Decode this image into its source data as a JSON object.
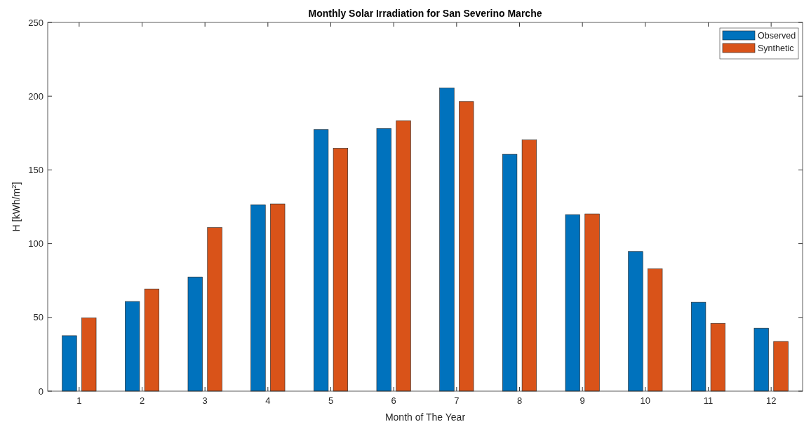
{
  "chart_data": {
    "type": "bar",
    "title": "Monthly Solar Irradiation for San Severino Marche",
    "xlabel": "Month of The Year",
    "ylabel": "H [kWh/m$^{2}$]",
    "categories": [
      "1",
      "2",
      "3",
      "4",
      "5",
      "6",
      "7",
      "8",
      "9",
      "10",
      "11",
      "12"
    ],
    "series": [
      {
        "name": "Observed",
        "color": "#0072bd",
        "values": [
          37.6,
          60.8,
          77.4,
          126.4,
          177.4,
          178.1,
          205.6,
          160.6,
          119.7,
          94.7,
          60.3,
          42.7
        ]
      },
      {
        "name": "Synthetic",
        "color": "#d95319",
        "values": [
          49.7,
          69.3,
          110.9,
          126.9,
          164.7,
          183.4,
          196.4,
          170.3,
          120.2,
          83.0,
          46.0,
          33.7
        ]
      }
    ],
    "ylim": [
      0,
      250
    ],
    "yticks": [
      0,
      50,
      100,
      150,
      200,
      250
    ],
    "grid": false,
    "legend": "top right"
  }
}
